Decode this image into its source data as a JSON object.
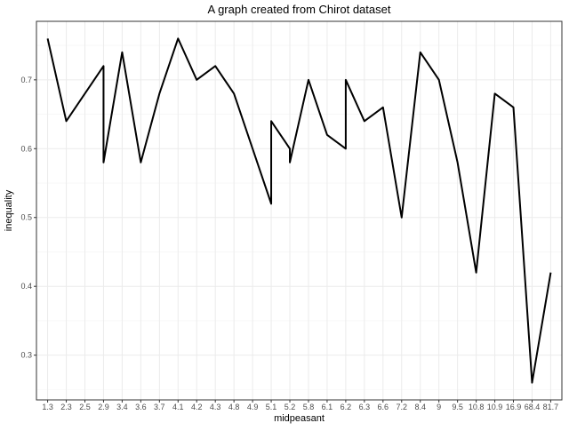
{
  "colors": {
    "line": "#000000",
    "grid_major": "#ebebeb",
    "grid_minor": "#f5f5f5",
    "panel_border": "#333333",
    "tick_text": "#4d4d4d",
    "background": "#ffffff"
  },
  "chart_data": {
    "type": "line",
    "title": "A graph created from Chirot dataset",
    "xlabel": "midpeasant",
    "ylabel": "inequality",
    "x_scale": "categorical",
    "categories": [
      "1.3",
      "2.3",
      "2.5",
      "2.9",
      "3.4",
      "3.6",
      "3.7",
      "4.1",
      "4.2",
      "4.3",
      "4.8",
      "4.9",
      "5.1",
      "5.2",
      "5.8",
      "6.1",
      "6.2",
      "6.3",
      "6.6",
      "7.2",
      "8.4",
      "9",
      "9.5",
      "10.8",
      "10.9",
      "16.9",
      "68.4",
      "81.7"
    ],
    "points": [
      {
        "x": "1.3",
        "y": 0.76
      },
      {
        "x": "2.3",
        "y": 0.64
      },
      {
        "x": "2.5",
        "y": 0.68
      },
      {
        "x": "2.9",
        "y": 0.72
      },
      {
        "x": "2.9",
        "y": 0.58
      },
      {
        "x": "3.4",
        "y": 0.74
      },
      {
        "x": "3.6",
        "y": 0.58
      },
      {
        "x": "3.7",
        "y": 0.68
      },
      {
        "x": "4.1",
        "y": 0.76
      },
      {
        "x": "4.2",
        "y": 0.7
      },
      {
        "x": "4.3",
        "y": 0.72
      },
      {
        "x": "4.8",
        "y": 0.68
      },
      {
        "x": "4.9",
        "y": 0.6
      },
      {
        "x": "5.1",
        "y": 0.52
      },
      {
        "x": "5.1",
        "y": 0.64
      },
      {
        "x": "5.2",
        "y": 0.6
      },
      {
        "x": "5.2",
        "y": 0.58
      },
      {
        "x": "5.8",
        "y": 0.7
      },
      {
        "x": "6.1",
        "y": 0.62
      },
      {
        "x": "6.2",
        "y": 0.6
      },
      {
        "x": "6.2",
        "y": 0.7
      },
      {
        "x": "6.3",
        "y": 0.64
      },
      {
        "x": "6.6",
        "y": 0.66
      },
      {
        "x": "7.2",
        "y": 0.5
      },
      {
        "x": "8.4",
        "y": 0.74
      },
      {
        "x": "9",
        "y": 0.7
      },
      {
        "x": "9.5",
        "y": 0.58
      },
      {
        "x": "10.8",
        "y": 0.42
      },
      {
        "x": "10.9",
        "y": 0.68
      },
      {
        "x": "16.9",
        "y": 0.66
      },
      {
        "x": "68.4",
        "y": 0.26
      },
      {
        "x": "81.7",
        "y": 0.42
      }
    ],
    "yticks": [
      0.3,
      0.4,
      0.5,
      0.6,
      0.7
    ],
    "ytick_labels": [
      "0.3",
      "0.4",
      "0.5",
      "0.6",
      "0.7"
    ],
    "ylim": [
      0.235,
      0.785
    ],
    "grid": true,
    "legend": "none"
  }
}
